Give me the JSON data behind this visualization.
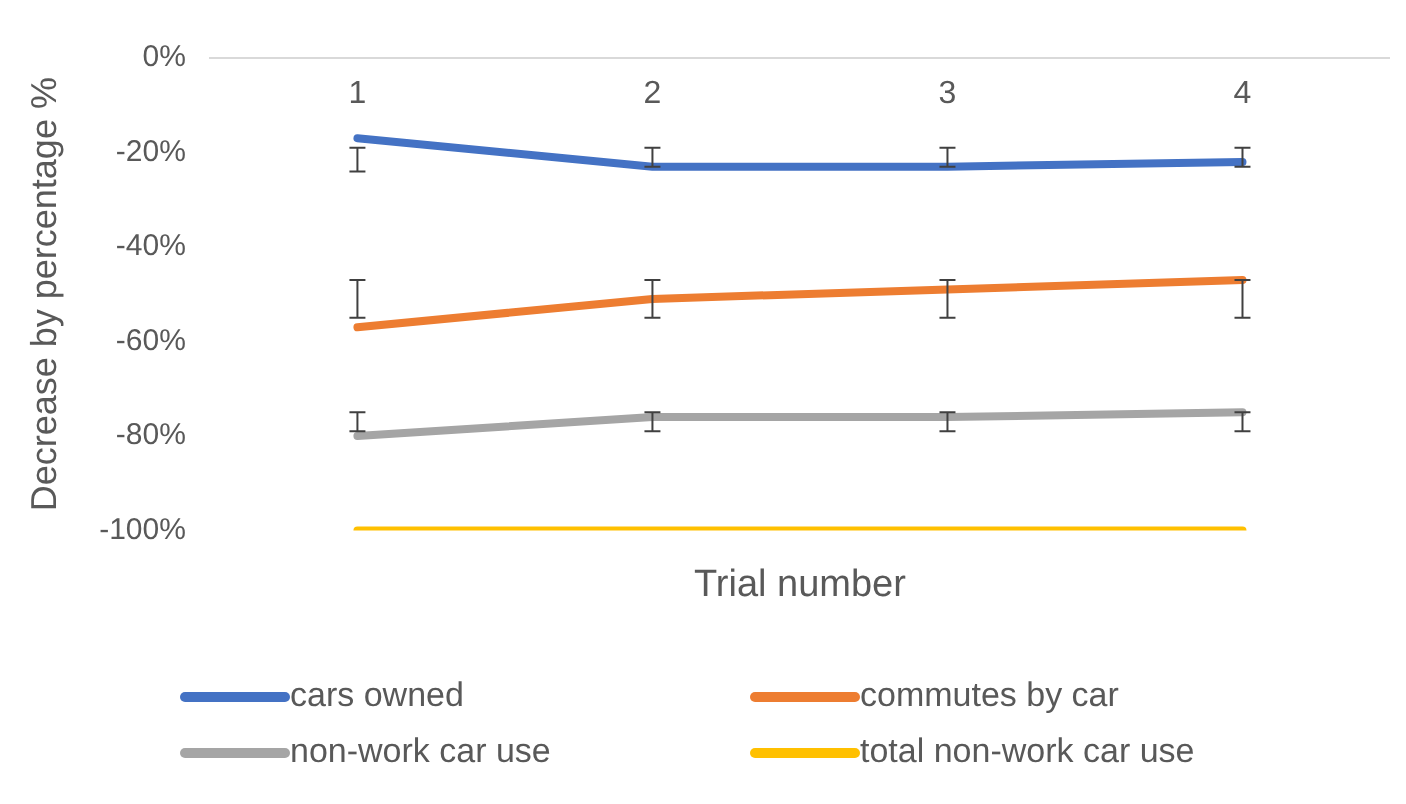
{
  "chart_data": {
    "type": "line",
    "xlabel": "Trial number",
    "ylabel": "Decrease by percentage %",
    "categories": [
      "1",
      "2",
      "3",
      "4"
    ],
    "series": [
      {
        "name": "cars owned",
        "color": "#4472c4",
        "values": [
          -17,
          -23,
          -23,
          -22
        ],
        "errors": [
          [
            -24,
            -19
          ],
          [
            -23,
            -19
          ],
          [
            -23,
            -19
          ],
          [
            -23,
            -19
          ]
        ]
      },
      {
        "name": "commutes by car",
        "color": "#ed7d31",
        "values": [
          -57,
          -51,
          -49,
          -47
        ],
        "errors": [
          [
            -55,
            -47
          ],
          [
            -55,
            -47
          ],
          [
            -55,
            -47
          ],
          [
            -55,
            -47
          ]
        ]
      },
      {
        "name": "non-work car use",
        "color": "#a5a5a5",
        "values": [
          -80,
          -76,
          -76,
          -75
        ],
        "errors": [
          [
            -79,
            -75
          ],
          [
            -79,
            -75
          ],
          [
            -79,
            -75
          ],
          [
            -79,
            -75
          ]
        ]
      },
      {
        "name": "total non-work car use",
        "color": "#ffc000",
        "values": [
          -100,
          -100,
          -100,
          -100
        ]
      }
    ],
    "ylim": [
      -100,
      0
    ],
    "yticks": [
      {
        "value": -100,
        "label": "-100%"
      },
      {
        "value": -80,
        "label": "-80%"
      },
      {
        "value": -60,
        "label": "-60%"
      },
      {
        "value": -40,
        "label": "-40%"
      },
      {
        "value": -20,
        "label": "-20%"
      },
      {
        "value": 0,
        "label": "0%"
      }
    ],
    "grid": false,
    "legend": "bottom",
    "line_style": "solid"
  }
}
